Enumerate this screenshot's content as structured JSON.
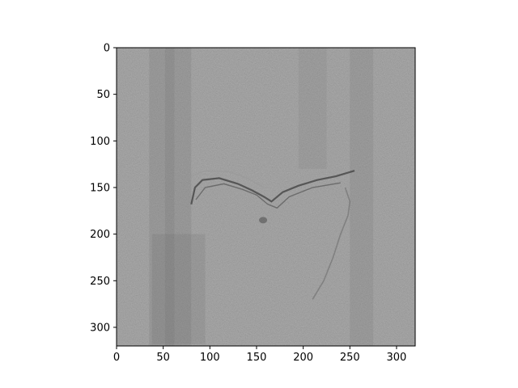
{
  "chart_data": {
    "type": "heatmap",
    "title": "",
    "xlabel": "",
    "ylabel": "",
    "image_shape": [
      320,
      320
    ],
    "xlim": [
      0,
      320
    ],
    "ylim": [
      320,
      0
    ],
    "y_inverted": true,
    "colormap": "gray",
    "grid": false,
    "x_ticks": [
      0,
      50,
      100,
      150,
      200,
      250,
      300
    ],
    "y_ticks": [
      0,
      50,
      100,
      150,
      200,
      250,
      300
    ],
    "x_tick_labels": [
      "0",
      "50",
      "100",
      "150",
      "200",
      "250",
      "300"
    ],
    "y_tick_labels": [
      "0",
      "50",
      "100",
      "150",
      "200",
      "250",
      "300"
    ],
    "background_gray": "#878787",
    "features": {
      "left_band_x": [
        35,
        80
      ],
      "right_band_x": [
        250,
        275
      ],
      "joint_line_y": [
        130,
        190
      ],
      "joint_line_x": [
        80,
        260
      ]
    }
  }
}
